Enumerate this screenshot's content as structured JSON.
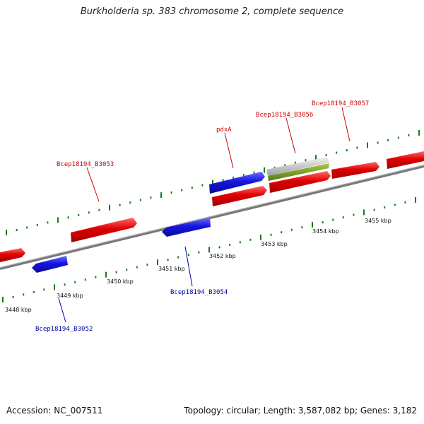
{
  "title": "Burkholderia sp. 383 chromosome 2, complete sequence",
  "footer": {
    "accession": "Accession: NC_007511",
    "summary": "Topology: circular; Length: 3,587,082 bp; Genes: 3,182"
  },
  "colors": {
    "forward_gene": "#e00000",
    "reverse_gene": "#1515e0",
    "rna_gene": "#c0c0c0",
    "other_feature": "#6f9a1e",
    "backbone": "#777777",
    "tick": "#1d7a1d"
  },
  "scale_labels": [
    "3448 kbp",
    "3449 kbp",
    "3450 kbp",
    "3451 kbp",
    "3452 kbp",
    "3453 kbp",
    "3454 kbp",
    "3455 kbp"
  ],
  "feature_labels": {
    "b3053": "Bcep18194_B3053",
    "pdxA": "pdxA",
    "b3056": "Bcep18194_B3056",
    "b3057": "Bcep18194_B3057",
    "b3054": "Bcep18194_B3054",
    "b3052": "Bcep18194_B3052"
  }
}
